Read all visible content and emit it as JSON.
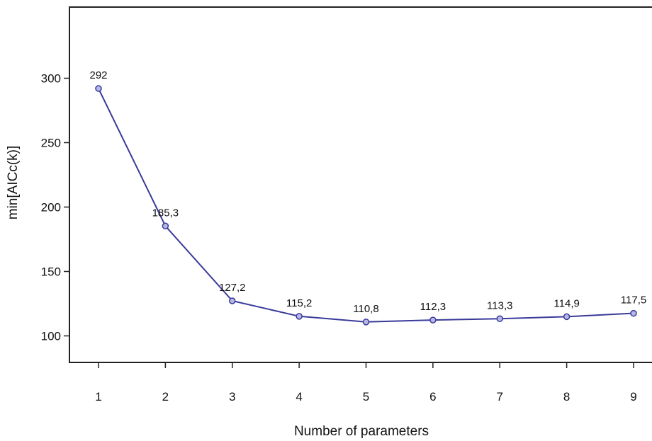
{
  "chart_data": {
    "type": "line",
    "title": "",
    "xlabel": "Number of parameters",
    "ylabel": "min[AICc(k)]",
    "x": [
      1,
      2,
      3,
      4,
      5,
      6,
      7,
      8,
      9
    ],
    "y_ticks": [
      100,
      150,
      200,
      250,
      300
    ],
    "ylim": [
      93,
      350
    ],
    "grid": false,
    "series": [
      {
        "values": [
          292,
          185.3,
          127.2,
          115.2,
          110.8,
          112.3,
          113.3,
          114.9,
          117.5
        ],
        "labels": [
          "292",
          "185,3",
          "127,2",
          "115,2",
          "110,8",
          "112,3",
          "113,3",
          "114,9",
          "117,5"
        ],
        "color": "#3a3a9a"
      }
    ]
  }
}
